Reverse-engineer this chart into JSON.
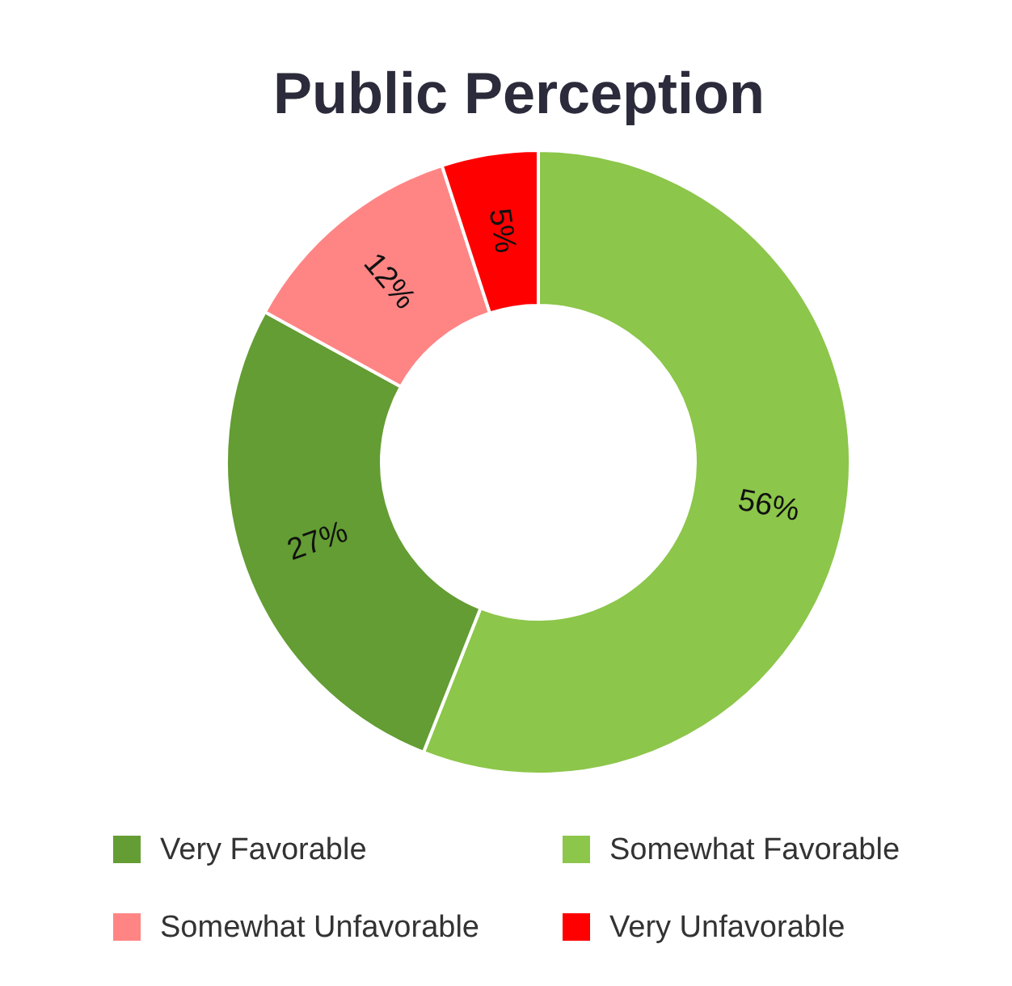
{
  "chart_data": {
    "type": "donut",
    "title": "Public Perception",
    "categories": [
      "Somewhat Favorable",
      "Very Favorable",
      "Somewhat Unfavorable",
      "Very Unfavorable"
    ],
    "values": [
      56,
      27,
      12,
      5
    ],
    "colors": [
      "#8cc64a",
      "#639d33",
      "#ff8585",
      "#ff0000"
    ],
    "value_labels": [
      "56%",
      "27%",
      "12%",
      "5%"
    ],
    "legend": "bottom"
  }
}
